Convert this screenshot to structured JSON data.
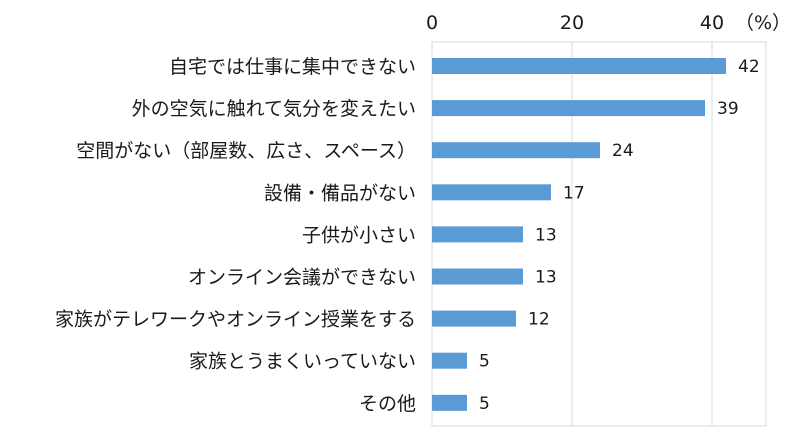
{
  "chart_data": {
    "type": "bar",
    "orientation": "horizontal",
    "title": "",
    "xlabel": "",
    "ylabel": "",
    "unit": "（%）",
    "categories": [
      "自宅では仕事に集中できない",
      "外の空気に触れて気分を変えたい",
      "空間がない（部屋数、広さ、スペース）",
      "設備・備品がない",
      "子供が小さい",
      "オンライン会議ができない",
      "家族がテレワークやオンライン授業をする",
      "家族とうまくいっていない",
      "その他"
    ],
    "values": [
      42,
      39,
      24,
      17,
      13,
      13,
      12,
      5,
      5
    ],
    "data_labels": [
      "42",
      "39",
      "24",
      "17",
      "13",
      "13",
      "12",
      "5",
      "5"
    ],
    "xlim": [
      0,
      48
    ],
    "xticks": [
      0,
      20,
      40
    ],
    "xtick_labels": [
      "0",
      "20",
      "40"
    ],
    "axis_position": "top",
    "grid": true,
    "legend": "none",
    "colors": {
      "bar": "#5b9bd5",
      "grid": "#d9d9d9",
      "text": "#1a1a1a"
    }
  }
}
